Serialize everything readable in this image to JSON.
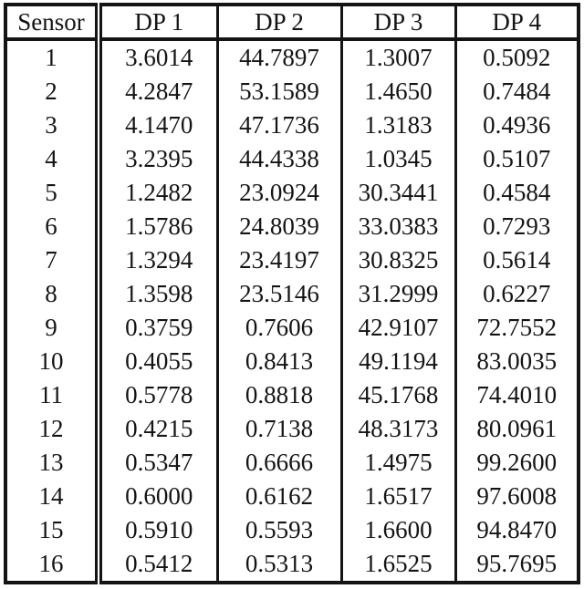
{
  "table": {
    "header": [
      "Sensor",
      "DP 1",
      "DP 2",
      "DP 3",
      "DP 4"
    ],
    "rows": [
      {
        "sensor": "1",
        "values": [
          "3.6014",
          "44.7897",
          "1.3007",
          "0.5092"
        ]
      },
      {
        "sensor": "2",
        "values": [
          "4.2847",
          "53.1589",
          "1.4650",
          "0.7484"
        ]
      },
      {
        "sensor": "3",
        "values": [
          "4.1470",
          "47.1736",
          "1.3183",
          "0.4936"
        ]
      },
      {
        "sensor": "4",
        "values": [
          "3.2395",
          "44.4338",
          "1.0345",
          "0.5107"
        ]
      },
      {
        "sensor": "5",
        "values": [
          "1.2482",
          "23.0924",
          "30.3441",
          "0.4584"
        ]
      },
      {
        "sensor": "6",
        "values": [
          "1.5786",
          "24.8039",
          "33.0383",
          "0.7293"
        ]
      },
      {
        "sensor": "7",
        "values": [
          "1.3294",
          "23.4197",
          "30.8325",
          "0.5614"
        ]
      },
      {
        "sensor": "8",
        "values": [
          "1.3598",
          "23.5146",
          "31.2999",
          "0.6227"
        ]
      },
      {
        "sensor": "9",
        "values": [
          "0.3759",
          "0.7606",
          "42.9107",
          "72.7552"
        ]
      },
      {
        "sensor": "10",
        "values": [
          "0.4055",
          "0.8413",
          "49.1194",
          "83.0035"
        ]
      },
      {
        "sensor": "11",
        "values": [
          "0.5778",
          "0.8818",
          "45.1768",
          "74.4010"
        ]
      },
      {
        "sensor": "12",
        "values": [
          "0.4215",
          "0.7138",
          "48.3173",
          "80.0961"
        ]
      },
      {
        "sensor": "13",
        "values": [
          "0.5347",
          "0.6666",
          "1.4975",
          "99.2600"
        ]
      },
      {
        "sensor": "14",
        "values": [
          "0.6000",
          "0.6162",
          "1.6517",
          "97.6008"
        ]
      },
      {
        "sensor": "15",
        "values": [
          "0.5910",
          "0.5593",
          "1.6600",
          "94.8470"
        ]
      },
      {
        "sensor": "16",
        "values": [
          "0.5412",
          "0.5313",
          "1.6525",
          "95.7695"
        ]
      }
    ],
    "colors": {
      "text": "#141414",
      "border": "#141414",
      "background": "#ffffff"
    }
  }
}
